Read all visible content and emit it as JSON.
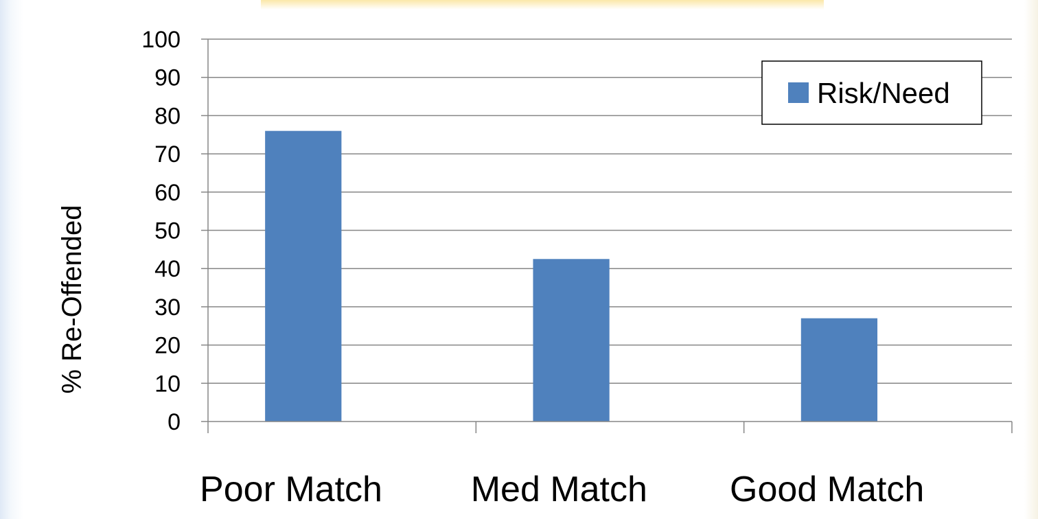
{
  "chart_data": {
    "type": "bar",
    "categories": [
      "Poor Match",
      "Med Match",
      "Good Match"
    ],
    "series": [
      {
        "name": "Risk/Need",
        "values": [
          76,
          42.5,
          27
        ]
      }
    ],
    "ylabel": "% Re-Offended",
    "xlabel": "",
    "ylim": [
      0,
      100
    ],
    "yticks": [
      0,
      10,
      20,
      30,
      40,
      50,
      60,
      70,
      80,
      90,
      100
    ],
    "grid": true,
    "legend_position": "top-right",
    "bar_color": "#4f81bd"
  }
}
